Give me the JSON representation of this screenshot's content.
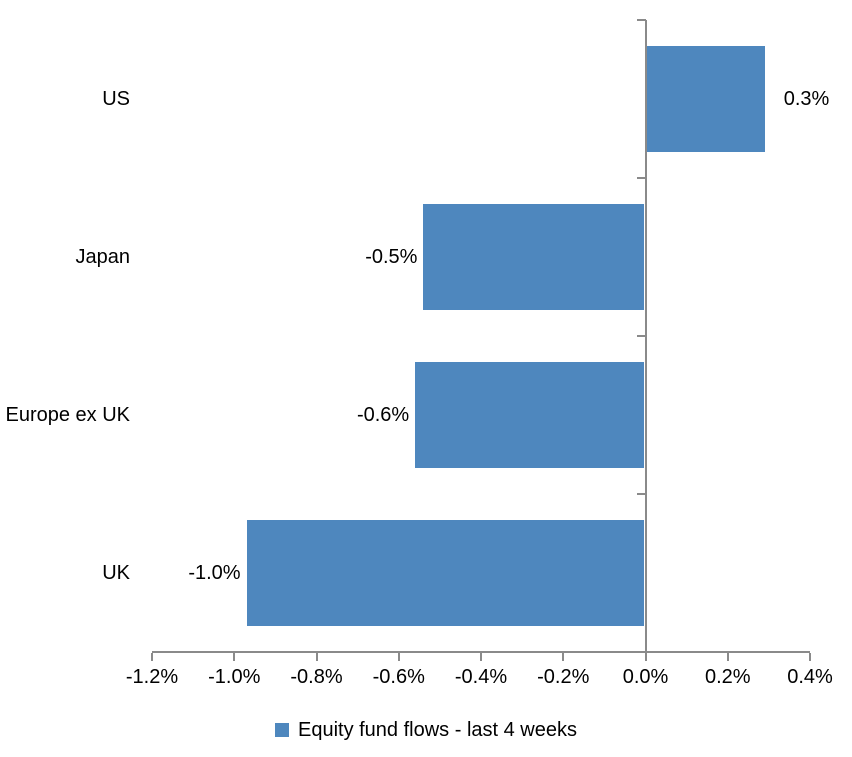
{
  "chart_data": {
    "type": "bar",
    "orientation": "horizontal",
    "title": "",
    "xlabel": "",
    "ylabel": "",
    "categories": [
      "US",
      "Japan",
      "Europe ex UK",
      "UK"
    ],
    "series": [
      {
        "name": "Equity fund flows - last 4 weeks",
        "values": [
          0.3,
          -0.5,
          -0.6,
          -1.0
        ],
        "plot_values": [
          0.29,
          -0.54,
          -0.56,
          -0.97
        ],
        "data_labels": [
          "0.3%",
          "-0.5%",
          "-0.6%",
          "-1.0%"
        ],
        "color": "#4E87BE"
      }
    ],
    "xlim": [
      -1.2,
      0.4
    ],
    "x_ticks": [
      -1.2,
      -1.0,
      -0.8,
      -0.6,
      -0.4,
      -0.2,
      0.0,
      0.2,
      0.4
    ],
    "x_tick_labels": [
      "-1.2%",
      "-1.0%",
      "-0.8%",
      "-0.6%",
      "-0.4%",
      "-0.2%",
      "0.0%",
      "0.2%",
      "0.4%"
    ],
    "grid": false,
    "legend_position": "bottom",
    "legend": [
      {
        "label": "Equity fund flows - last 4 weeks",
        "color": "#4E87BE"
      }
    ],
    "colors": {
      "bar": "#4E87BE",
      "axis": "#8A8A8A",
      "text": "#000000",
      "background": "#FFFFFF"
    }
  }
}
